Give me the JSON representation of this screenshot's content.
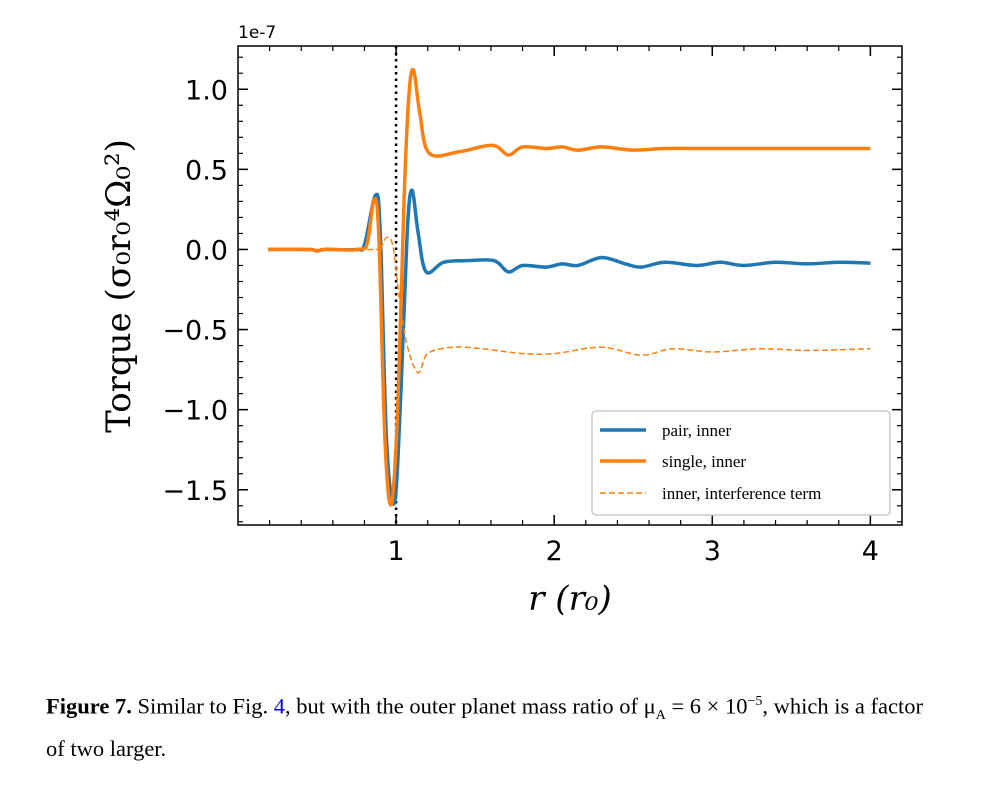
{
  "chart_data": {
    "type": "line",
    "xlabel": "r (r₀)",
    "ylabel": "Torque (σ₀r₀⁴Ω₀²)",
    "y_offset_label": "1e-7",
    "xlim": [
      0.0,
      4.2
    ],
    "ylim": [
      -1.72,
      1.27
    ],
    "x_ticks": [
      1,
      2,
      3,
      4
    ],
    "x_tick_labels": [
      "1",
      "2",
      "3",
      "4"
    ],
    "y_ticks": [
      1.0,
      0.5,
      0.0,
      -0.5,
      -1.0,
      -1.5
    ],
    "y_tick_labels": [
      "1.0",
      "0.5",
      "0.0",
      "−0.5",
      "−1.0",
      "−1.5"
    ],
    "grid": false,
    "legend_position": "lower-right",
    "vertical_line": {
      "x": 1.0,
      "color": "#000000",
      "style": "dotted"
    },
    "series": [
      {
        "name": "pair, inner",
        "color": "#1f77b4",
        "style": "solid",
        "points": [
          [
            0.19,
            0
          ],
          [
            0.45,
            0
          ],
          [
            0.5,
            -0.01
          ],
          [
            0.55,
            0
          ],
          [
            0.75,
            0
          ],
          [
            0.8,
            0.03
          ],
          [
            0.87,
            0.34
          ],
          [
            0.9,
            0.1
          ],
          [
            0.94,
            -1.2
          ],
          [
            0.99,
            -1.58
          ],
          [
            1.03,
            -0.9
          ],
          [
            1.07,
            0.1
          ],
          [
            1.1,
            0.37
          ],
          [
            1.14,
            0.1
          ],
          [
            1.19,
            -0.14
          ],
          [
            1.3,
            -0.08
          ],
          [
            1.45,
            -0.07
          ],
          [
            1.62,
            -0.07
          ],
          [
            1.71,
            -0.14
          ],
          [
            1.8,
            -0.1
          ],
          [
            1.95,
            -0.11
          ],
          [
            2.05,
            -0.09
          ],
          [
            2.15,
            -0.1
          ],
          [
            2.3,
            -0.05
          ],
          [
            2.45,
            -0.09
          ],
          [
            2.55,
            -0.11
          ],
          [
            2.7,
            -0.08
          ],
          [
            2.9,
            -0.1
          ],
          [
            3.05,
            -0.08
          ],
          [
            3.2,
            -0.1
          ],
          [
            3.4,
            -0.08
          ],
          [
            3.6,
            -0.09
          ],
          [
            3.8,
            -0.08
          ],
          [
            4.0,
            -0.085
          ]
        ]
      },
      {
        "name": "single, inner",
        "color": "#ff7f0e",
        "style": "solid",
        "points": [
          [
            0.19,
            0
          ],
          [
            0.45,
            0
          ],
          [
            0.5,
            -0.01
          ],
          [
            0.55,
            0
          ],
          [
            0.77,
            0
          ],
          [
            0.82,
            0.05
          ],
          [
            0.86,
            0.31
          ],
          [
            0.89,
            0.1
          ],
          [
            0.93,
            -1.2
          ],
          [
            0.97,
            -1.59
          ],
          [
            1.01,
            -1.0
          ],
          [
            1.05,
            0.3
          ],
          [
            1.08,
            0.95
          ],
          [
            1.11,
            1.12
          ],
          [
            1.15,
            0.85
          ],
          [
            1.21,
            0.6
          ],
          [
            1.4,
            0.61
          ],
          [
            1.61,
            0.65
          ],
          [
            1.71,
            0.59
          ],
          [
            1.8,
            0.64
          ],
          [
            1.95,
            0.63
          ],
          [
            2.05,
            0.64
          ],
          [
            2.15,
            0.62
          ],
          [
            2.3,
            0.64
          ],
          [
            2.5,
            0.62
          ],
          [
            2.7,
            0.63
          ],
          [
            3.0,
            0.63
          ],
          [
            3.5,
            0.63
          ],
          [
            4.0,
            0.63
          ]
        ]
      },
      {
        "name": "inner, interference term",
        "color": "#ff7f0e",
        "style": "dashed",
        "points": [
          [
            0.19,
            0
          ],
          [
            0.85,
            0
          ],
          [
            0.9,
            0.01
          ],
          [
            0.94,
            0.075
          ],
          [
            0.98,
            0.02
          ],
          [
            1.02,
            -0.3
          ],
          [
            1.07,
            -0.6
          ],
          [
            1.14,
            -0.77
          ],
          [
            1.2,
            -0.65
          ],
          [
            1.36,
            -0.61
          ],
          [
            1.55,
            -0.62
          ],
          [
            1.8,
            -0.65
          ],
          [
            2.0,
            -0.65
          ],
          [
            2.3,
            -0.61
          ],
          [
            2.55,
            -0.66
          ],
          [
            2.75,
            -0.62
          ],
          [
            3.0,
            -0.64
          ],
          [
            3.3,
            -0.62
          ],
          [
            3.6,
            -0.63
          ],
          [
            4.0,
            -0.62
          ]
        ]
      }
    ]
  },
  "caption": {
    "label": "Figure 7.",
    "text_before_link": " Similar to Fig. ",
    "link": "4",
    "text_after_link": ", but with the outer planet mass ratio of μ",
    "subscript": "A",
    "equation": " = 6 × 10",
    "superscript": "−5",
    "text_end": ", which is a factor of two larger."
  }
}
